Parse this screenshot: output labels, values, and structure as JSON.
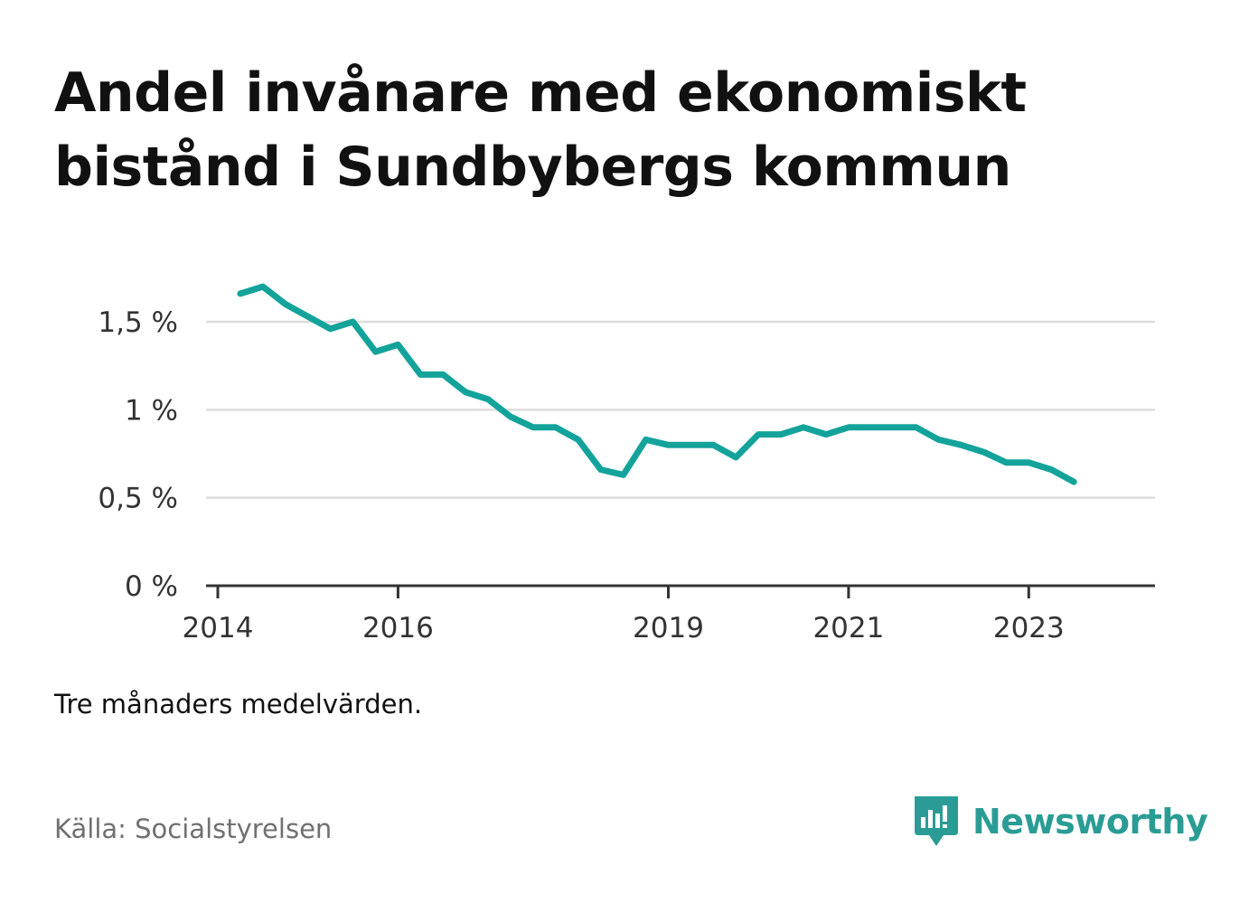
{
  "title": "Andel invånare med ekonomiskt bistånd i Sundbybergs kommun",
  "note": "Tre månaders medelvärden.",
  "source": "Källa: Socialstyrelsen",
  "brand": {
    "name": "Newsworthy",
    "icon": "newsworthy-logo-icon",
    "color": "#2a9c95"
  },
  "chart_data": {
    "type": "line",
    "title": "Andel invånare med ekonomiskt bistånd i Sundbybergs kommun",
    "xlabel": "",
    "ylabel": "",
    "ylim": [
      0,
      1.8
    ],
    "grid": true,
    "line_color": "#13a39b",
    "y_ticks": [
      {
        "value": 0,
        "label": "0 %"
      },
      {
        "value": 0.5,
        "label": "0,5 %"
      },
      {
        "value": 1,
        "label": "1 %"
      },
      {
        "value": 1.5,
        "label": "1,5 %"
      }
    ],
    "x_ticks": [
      {
        "value": "2014-01",
        "label": "2014"
      },
      {
        "value": "2016-01",
        "label": "2016"
      },
      {
        "value": "2019-01",
        "label": "2019"
      },
      {
        "value": "2021-01",
        "label": "2021"
      },
      {
        "value": "2023-01",
        "label": "2023"
      }
    ],
    "xlim": [
      "2014-01",
      "2024-01"
    ],
    "series": [
      {
        "x": [
          "2014-04",
          "2014-07",
          "2014-10",
          "2015-01",
          "2015-04",
          "2015-07",
          "2015-10",
          "2016-01",
          "2016-04",
          "2016-07",
          "2016-10",
          "2017-01",
          "2017-04",
          "2017-07",
          "2017-10",
          "2018-01",
          "2018-04",
          "2018-07",
          "2018-10",
          "2019-01",
          "2019-04",
          "2019-07",
          "2019-10",
          "2020-01",
          "2020-04",
          "2020-07",
          "2020-10",
          "2021-01",
          "2021-04",
          "2021-07",
          "2021-10",
          "2022-01",
          "2022-04",
          "2022-07",
          "2022-10",
          "2023-01",
          "2023-04",
          "2023-07"
        ],
        "values": [
          1.66,
          1.7,
          1.6,
          1.53,
          1.46,
          1.5,
          1.33,
          1.37,
          1.2,
          1.2,
          1.1,
          1.06,
          0.96,
          0.9,
          0.9,
          0.83,
          0.66,
          0.63,
          0.83,
          0.8,
          0.8,
          0.8,
          0.73,
          0.86,
          0.86,
          0.9,
          0.86,
          0.9,
          0.9,
          0.9,
          0.9,
          0.83,
          0.8,
          0.76,
          0.7,
          0.7,
          0.66,
          0.59
        ]
      }
    ]
  }
}
